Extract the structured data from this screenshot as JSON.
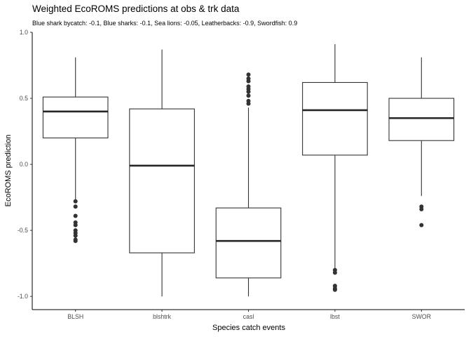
{
  "chart_data": {
    "type": "box",
    "title": "Weighted EcoROMS predictions at obs & trk data",
    "subtitle": "Blue shark bycatch: -0.1, Blue sharks: -0.1, Sea lions: -0.05, Leatherbacks: -0.9, Swordfish: 0.9",
    "xlabel": "Species catch events",
    "ylabel": "EcoROMS prediction",
    "ylim": [
      -1.1,
      1.0
    ],
    "yticks": [
      -1.0,
      -0.5,
      0.0,
      0.5,
      1.0
    ],
    "ytick_labels": [
      "-1.0",
      "-0.5",
      "0.0",
      "0.5",
      "1.0"
    ],
    "grid": false,
    "categories": [
      "BLSH",
      "blshtrk",
      "casl",
      "lbst",
      "SWOR"
    ],
    "boxes": [
      {
        "category": "BLSH",
        "whisker_low": -0.27,
        "q1": 0.2,
        "median": 0.4,
        "q3": 0.51,
        "whisker_high": 0.81,
        "outliers": [
          -0.28,
          -0.32,
          -0.39,
          -0.44,
          -0.46,
          -0.5,
          -0.52,
          -0.54,
          -0.57,
          -0.58
        ]
      },
      {
        "category": "blshtrk",
        "whisker_low": -1.0,
        "q1": -0.67,
        "median": -0.01,
        "q3": 0.42,
        "whisker_high": 0.87,
        "outliers": []
      },
      {
        "category": "casl",
        "whisker_low": -1.0,
        "q1": -0.86,
        "median": -0.58,
        "q3": -0.33,
        "whisker_high": 0.43,
        "outliers": [
          0.46,
          0.48,
          0.52,
          0.55,
          0.57,
          0.59,
          0.63,
          0.65,
          0.68
        ]
      },
      {
        "category": "lbst",
        "whisker_low": -0.79,
        "q1": 0.07,
        "median": 0.41,
        "q3": 0.62,
        "whisker_high": 0.91,
        "outliers": [
          -0.8,
          -0.82,
          -0.92,
          -0.94,
          -0.95
        ]
      },
      {
        "category": "SWOR",
        "whisker_low": -0.24,
        "q1": 0.18,
        "median": 0.35,
        "q3": 0.5,
        "whisker_high": 0.81,
        "outliers": [
          -0.32,
          -0.34,
          -0.46
        ]
      }
    ]
  }
}
